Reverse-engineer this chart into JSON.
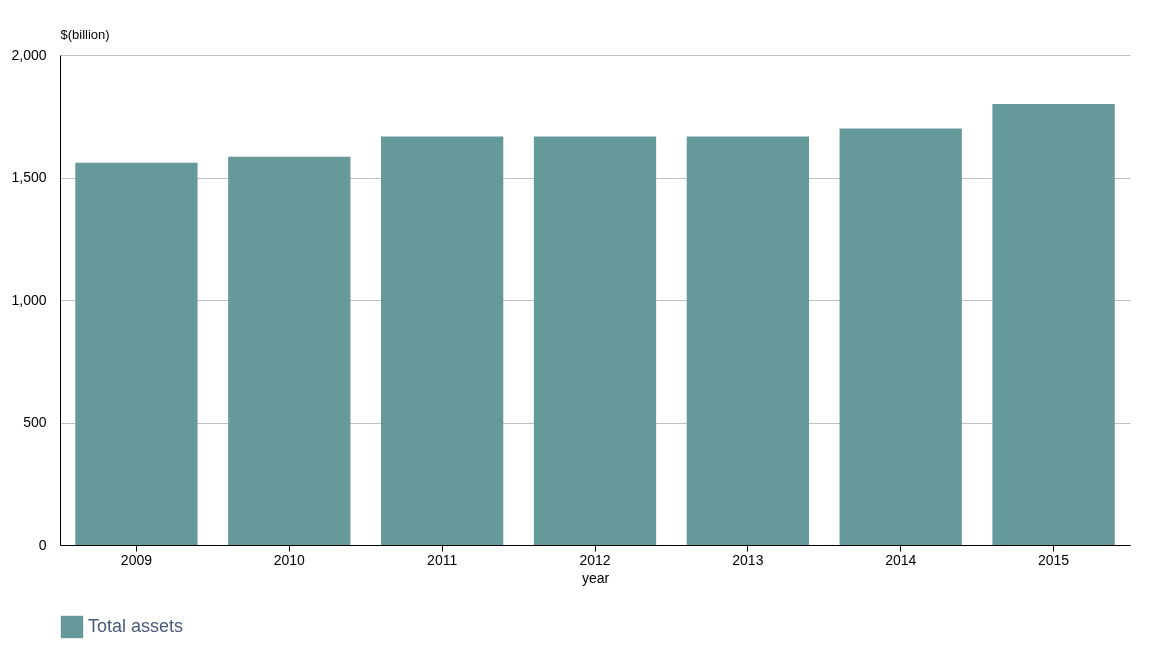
{
  "chart_data": {
    "type": "bar",
    "xlabel": "year",
    "ylabel": "$(billion)",
    "categories": [
      "2009",
      "2010",
      "2011",
      "2012",
      "2013",
      "2014",
      "2015"
    ],
    "series": [
      {
        "name": "Total assets",
        "color": "#669999",
        "values": [
          1560,
          1585,
          1667,
          1667,
          1667,
          1700,
          1800
        ]
      }
    ],
    "ylim": [
      0,
      2000
    ],
    "yticks": [
      {
        "value": 0,
        "label": "0"
      },
      {
        "value": 500,
        "label": "500"
      },
      {
        "value": 1000,
        "label": "1,000"
      },
      {
        "value": 1500,
        "label": "1,500"
      },
      {
        "value": 2000,
        "label": "2,000"
      }
    ],
    "grid": "y",
    "legend": "bottom"
  }
}
